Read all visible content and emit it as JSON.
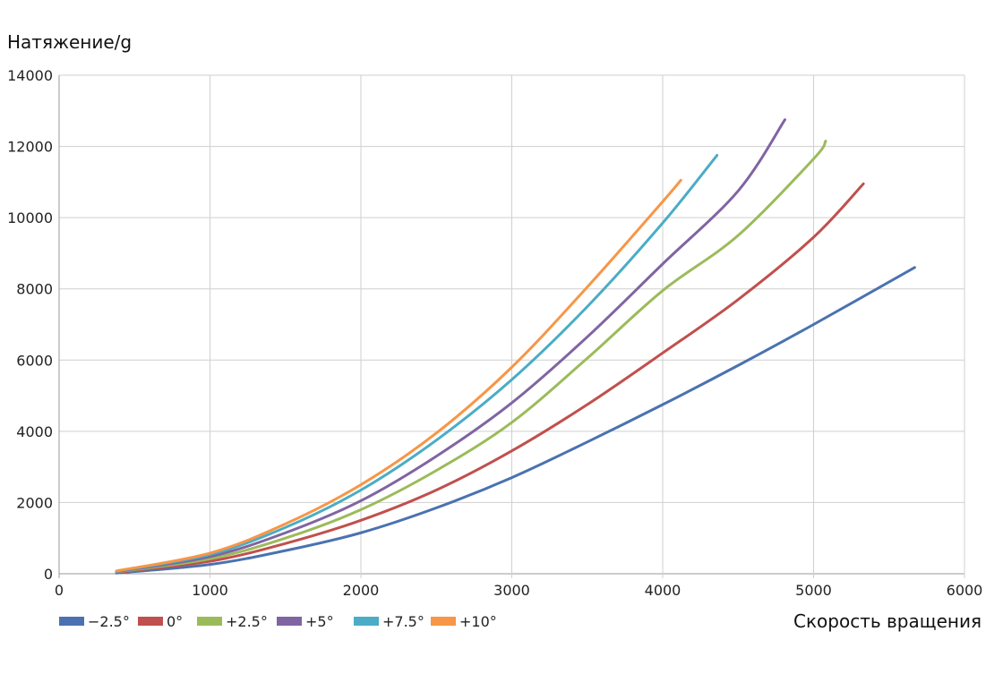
{
  "chart_data": {
    "type": "line",
    "ylabel": "Натяжение/g",
    "xlabel": "Скорость вращения",
    "xlim": [
      0,
      6000
    ],
    "ylim": [
      0,
      14000
    ],
    "xticks": [
      0,
      1000,
      2000,
      3000,
      4000,
      5000,
      6000
    ],
    "yticks": [
      0,
      2000,
      4000,
      6000,
      8000,
      10000,
      12000,
      14000
    ],
    "grid": true,
    "legend_position": "bottom-left",
    "series": [
      {
        "name": "−2.5°",
        "color": "#4a72b0",
        "points": [
          [
            380,
            20
          ],
          [
            1000,
            260
          ],
          [
            1500,
            650
          ],
          [
            2000,
            1150
          ],
          [
            2500,
            1850
          ],
          [
            3000,
            2700
          ],
          [
            3500,
            3700
          ],
          [
            4000,
            4750
          ],
          [
            4500,
            5850
          ],
          [
            5000,
            7000
          ],
          [
            5670,
            8600
          ]
        ]
      },
      {
        "name": "0°",
        "color": "#c0504d",
        "points": [
          [
            380,
            40
          ],
          [
            1000,
            350
          ],
          [
            1500,
            850
          ],
          [
            2000,
            1500
          ],
          [
            2500,
            2350
          ],
          [
            3000,
            3450
          ],
          [
            3500,
            4750
          ],
          [
            4000,
            6200
          ],
          [
            4500,
            7700
          ],
          [
            5000,
            9450
          ],
          [
            5330,
            10950
          ]
        ]
      },
      {
        "name": "+2.5°",
        "color": "#9bbb59",
        "points": [
          [
            380,
            50
          ],
          [
            1000,
            420
          ],
          [
            1500,
            1000
          ],
          [
            2000,
            1800
          ],
          [
            2500,
            2900
          ],
          [
            3000,
            4250
          ],
          [
            3500,
            6050
          ],
          [
            4000,
            7950
          ],
          [
            4500,
            9500
          ],
          [
            5000,
            11650
          ],
          [
            5080,
            12150
          ]
        ]
      },
      {
        "name": "+5°",
        "color": "#8064a2",
        "points": [
          [
            380,
            60
          ],
          [
            1000,
            480
          ],
          [
            1500,
            1150
          ],
          [
            2000,
            2050
          ],
          [
            2500,
            3300
          ],
          [
            3000,
            4800
          ],
          [
            3500,
            6650
          ],
          [
            4000,
            8700
          ],
          [
            4500,
            10750
          ],
          [
            4810,
            12750
          ]
        ]
      },
      {
        "name": "+7.5°",
        "color": "#4bacc6",
        "points": [
          [
            380,
            70
          ],
          [
            1000,
            540
          ],
          [
            1500,
            1300
          ],
          [
            2000,
            2350
          ],
          [
            2500,
            3750
          ],
          [
            3000,
            5450
          ],
          [
            3500,
            7500
          ],
          [
            4000,
            9850
          ],
          [
            4360,
            11750
          ]
        ]
      },
      {
        "name": "+10°",
        "color": "#f79646",
        "points": [
          [
            380,
            80
          ],
          [
            1000,
            580
          ],
          [
            1500,
            1400
          ],
          [
            2000,
            2500
          ],
          [
            2500,
            3950
          ],
          [
            3000,
            5800
          ],
          [
            3500,
            8050
          ],
          [
            4000,
            10450
          ],
          [
            4120,
            11050
          ]
        ]
      }
    ]
  }
}
